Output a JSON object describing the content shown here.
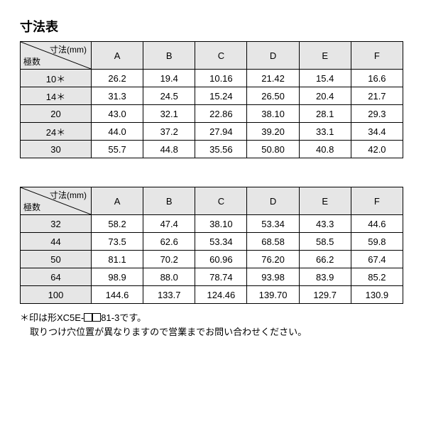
{
  "title": "寸法表",
  "corner_top": "寸法(mm)",
  "corner_bottom": "極数",
  "columns": [
    "A",
    "B",
    "C",
    "D",
    "E",
    "F"
  ],
  "table1": {
    "rows": [
      {
        "label": "10＊",
        "vals": [
          "26.2",
          "19.4",
          "10.16",
          "21.42",
          "15.4",
          "16.6"
        ]
      },
      {
        "label": "14＊",
        "vals": [
          "31.3",
          "24.5",
          "15.24",
          "26.50",
          "20.4",
          "21.7"
        ]
      },
      {
        "label": "20",
        "vals": [
          "43.0",
          "32.1",
          "22.86",
          "38.10",
          "28.1",
          "29.3"
        ]
      },
      {
        "label": "24＊",
        "vals": [
          "44.0",
          "37.2",
          "27.94",
          "39.20",
          "33.1",
          "34.4"
        ]
      },
      {
        "label": "30",
        "vals": [
          "55.7",
          "44.8",
          "35.56",
          "50.80",
          "40.8",
          "42.0"
        ]
      }
    ]
  },
  "table2": {
    "rows": [
      {
        "label": "32",
        "vals": [
          "58.2",
          "47.4",
          "38.10",
          "53.34",
          "43.3",
          "44.6"
        ]
      },
      {
        "label": "44",
        "vals": [
          "73.5",
          "62.6",
          "53.34",
          "68.58",
          "58.5",
          "59.8"
        ]
      },
      {
        "label": "50",
        "vals": [
          "81.1",
          "70.2",
          "60.96",
          "76.20",
          "66.2",
          "67.4"
        ]
      },
      {
        "label": "64",
        "vals": [
          "98.9",
          "88.0",
          "78.74",
          "93.98",
          "83.9",
          "85.2"
        ]
      },
      {
        "label": "100",
        "vals": [
          "144.6",
          "133.7",
          "124.46",
          "139.70",
          "129.7",
          "130.9"
        ]
      }
    ]
  },
  "footnote": {
    "line1a": "＊印は形XC5E-",
    "line1b": "81-3です。",
    "line2": "取りつけ穴位置が異なりますので営業までお問い合わせください。"
  }
}
